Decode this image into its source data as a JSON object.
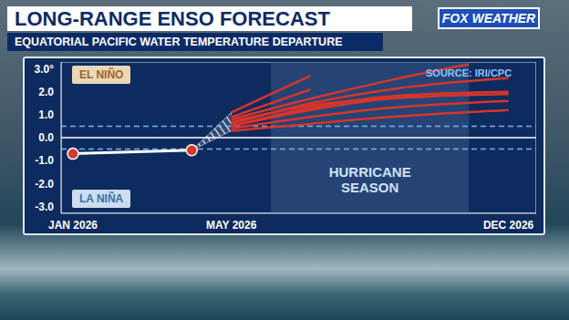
{
  "chart_data": {
    "type": "line",
    "title": "LONG-RANGE ENSO FORECAST",
    "subtitle": "EQUATORIAL PACIFIC WATER TEMPERATURE DEPARTURE",
    "brand": "FOX WEATHER",
    "source": "SOURCE: IRI/CPC",
    "annotations": {
      "upper": "EL NIÑO",
      "lower": "LA NIÑA"
    },
    "shaded_ranges": [
      {
        "text": "HURRICANE SEASON",
        "x": [
          6,
          11
        ]
      }
    ],
    "xlim": [
      0.7,
      12.7
    ],
    "xticks": [
      {
        "value": 1,
        "label": "JAN 2026"
      },
      {
        "value": 5,
        "label": "MAY 2026"
      },
      {
        "value": 12,
        "label": "DEC 2026"
      }
    ],
    "ylim": [
      -3.3,
      3.3
    ],
    "yticks": [
      {
        "value": 3,
        "label": "3.0°"
      },
      {
        "value": 2,
        "label": "2.0"
      },
      {
        "value": 1,
        "label": "1.0"
      },
      {
        "value": 0,
        "label": "0.0"
      },
      {
        "value": -1,
        "label": "-1.0"
      },
      {
        "value": -2,
        "label": "-2.0"
      },
      {
        "value": -3,
        "label": "-3.0"
      }
    ],
    "reference_lines": [
      {
        "value": 0.5,
        "line_style": "dashed"
      },
      {
        "value": -0.5,
        "line_style": "dashed"
      },
      {
        "value": 0,
        "line_style": "solid"
      }
    ],
    "series": [
      {
        "type": "area",
        "color": "#ffffff",
        "x": [
          4,
          5
        ],
        "values": [
          [
            -0.55,
            -0.55
          ],
          [
            0.3,
            1.1
          ]
        ]
      },
      {
        "type": "line",
        "color": "#d8352a",
        "x": [
          5,
          6,
          7
        ],
        "values": [
          1.1,
          1.9,
          2.7
        ]
      },
      {
        "type": "line",
        "color": "#d8352a",
        "x": [
          5,
          6,
          7
        ],
        "values": [
          0.9,
          1.5,
          2.1
        ]
      },
      {
        "type": "line",
        "color": "#d8352a",
        "x": [
          5,
          7,
          9,
          11
        ],
        "values": [
          0.8,
          1.7,
          2.5,
          3.2
        ]
      },
      {
        "type": "line",
        "color": "#d8352a",
        "x": [
          5,
          7,
          9,
          12
        ],
        "values": [
          0.6,
          1.5,
          2.1,
          2.6
        ]
      },
      {
        "type": "line",
        "color": "#d8352a",
        "x": [
          5,
          7,
          9,
          12
        ],
        "values": [
          0.5,
          1.3,
          1.8,
          2.0
        ]
      },
      {
        "type": "line",
        "color": "#d8352a",
        "x": [
          5,
          7,
          9,
          12
        ],
        "values": [
          0.5,
          1.2,
          1.7,
          1.9
        ]
      },
      {
        "type": "line",
        "color": "#d8352a",
        "x": [
          5,
          7,
          10
        ],
        "values": [
          0.7,
          1.4,
          1.8
        ]
      },
      {
        "type": "line",
        "color": "#d8352a",
        "x": [
          5,
          7,
          9,
          12
        ],
        "values": [
          0.4,
          0.9,
          1.3,
          1.6
        ]
      },
      {
        "type": "line",
        "color": "#d8352a",
        "x": [
          5,
          7,
          9,
          12
        ],
        "values": [
          0.3,
          0.6,
          0.9,
          1.2
        ]
      },
      {
        "type": "line",
        "color": "#ffffff",
        "marker": "circle",
        "x": [
          1,
          4
        ],
        "values": [
          -0.7,
          -0.55
        ]
      }
    ]
  }
}
